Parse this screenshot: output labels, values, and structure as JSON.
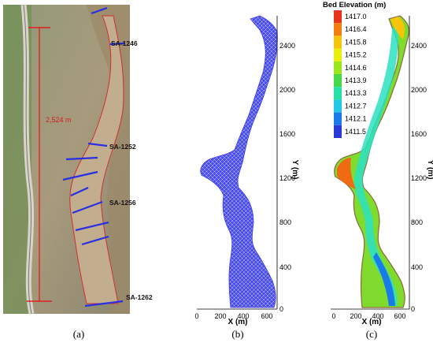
{
  "panels": {
    "a": {
      "caption": "(a)",
      "scale_label": "2,524 m",
      "sections": [
        "SA-1246",
        "SA-1252",
        "SA-1256",
        "SA-1262"
      ]
    },
    "b": {
      "caption": "(b)",
      "xlabel": "X (m)",
      "ylabel": "Y (m)",
      "xticks": [
        "0",
        "200",
        "400",
        "600"
      ],
      "yticks": [
        "0",
        "400",
        "800",
        "1200",
        "1600",
        "2000",
        "2400"
      ],
      "mesh_color": "#3344ee"
    },
    "c": {
      "caption": "(c)",
      "xlabel": "X (m)",
      "ylabel": "Y (m)",
      "xticks": [
        "0",
        "200",
        "400",
        "600"
      ],
      "yticks": [
        "0",
        "400",
        "800",
        "1200",
        "1600",
        "2000",
        "2400"
      ],
      "legend_title": "Bed Elevation (m)",
      "legend_values": [
        "1417.0",
        "1416.4",
        "1415.8",
        "1415.2",
        "1414.6",
        "1413.9",
        "1413.3",
        "1412.7",
        "1412.1",
        "1411.5"
      ],
      "legend_colors": [
        "#e8341c",
        "#f47d12",
        "#f6c40a",
        "#e9ee0c",
        "#9be61a",
        "#45d84a",
        "#27e0a6",
        "#22c8e6",
        "#1a7be8",
        "#2a3ad6"
      ]
    }
  }
}
